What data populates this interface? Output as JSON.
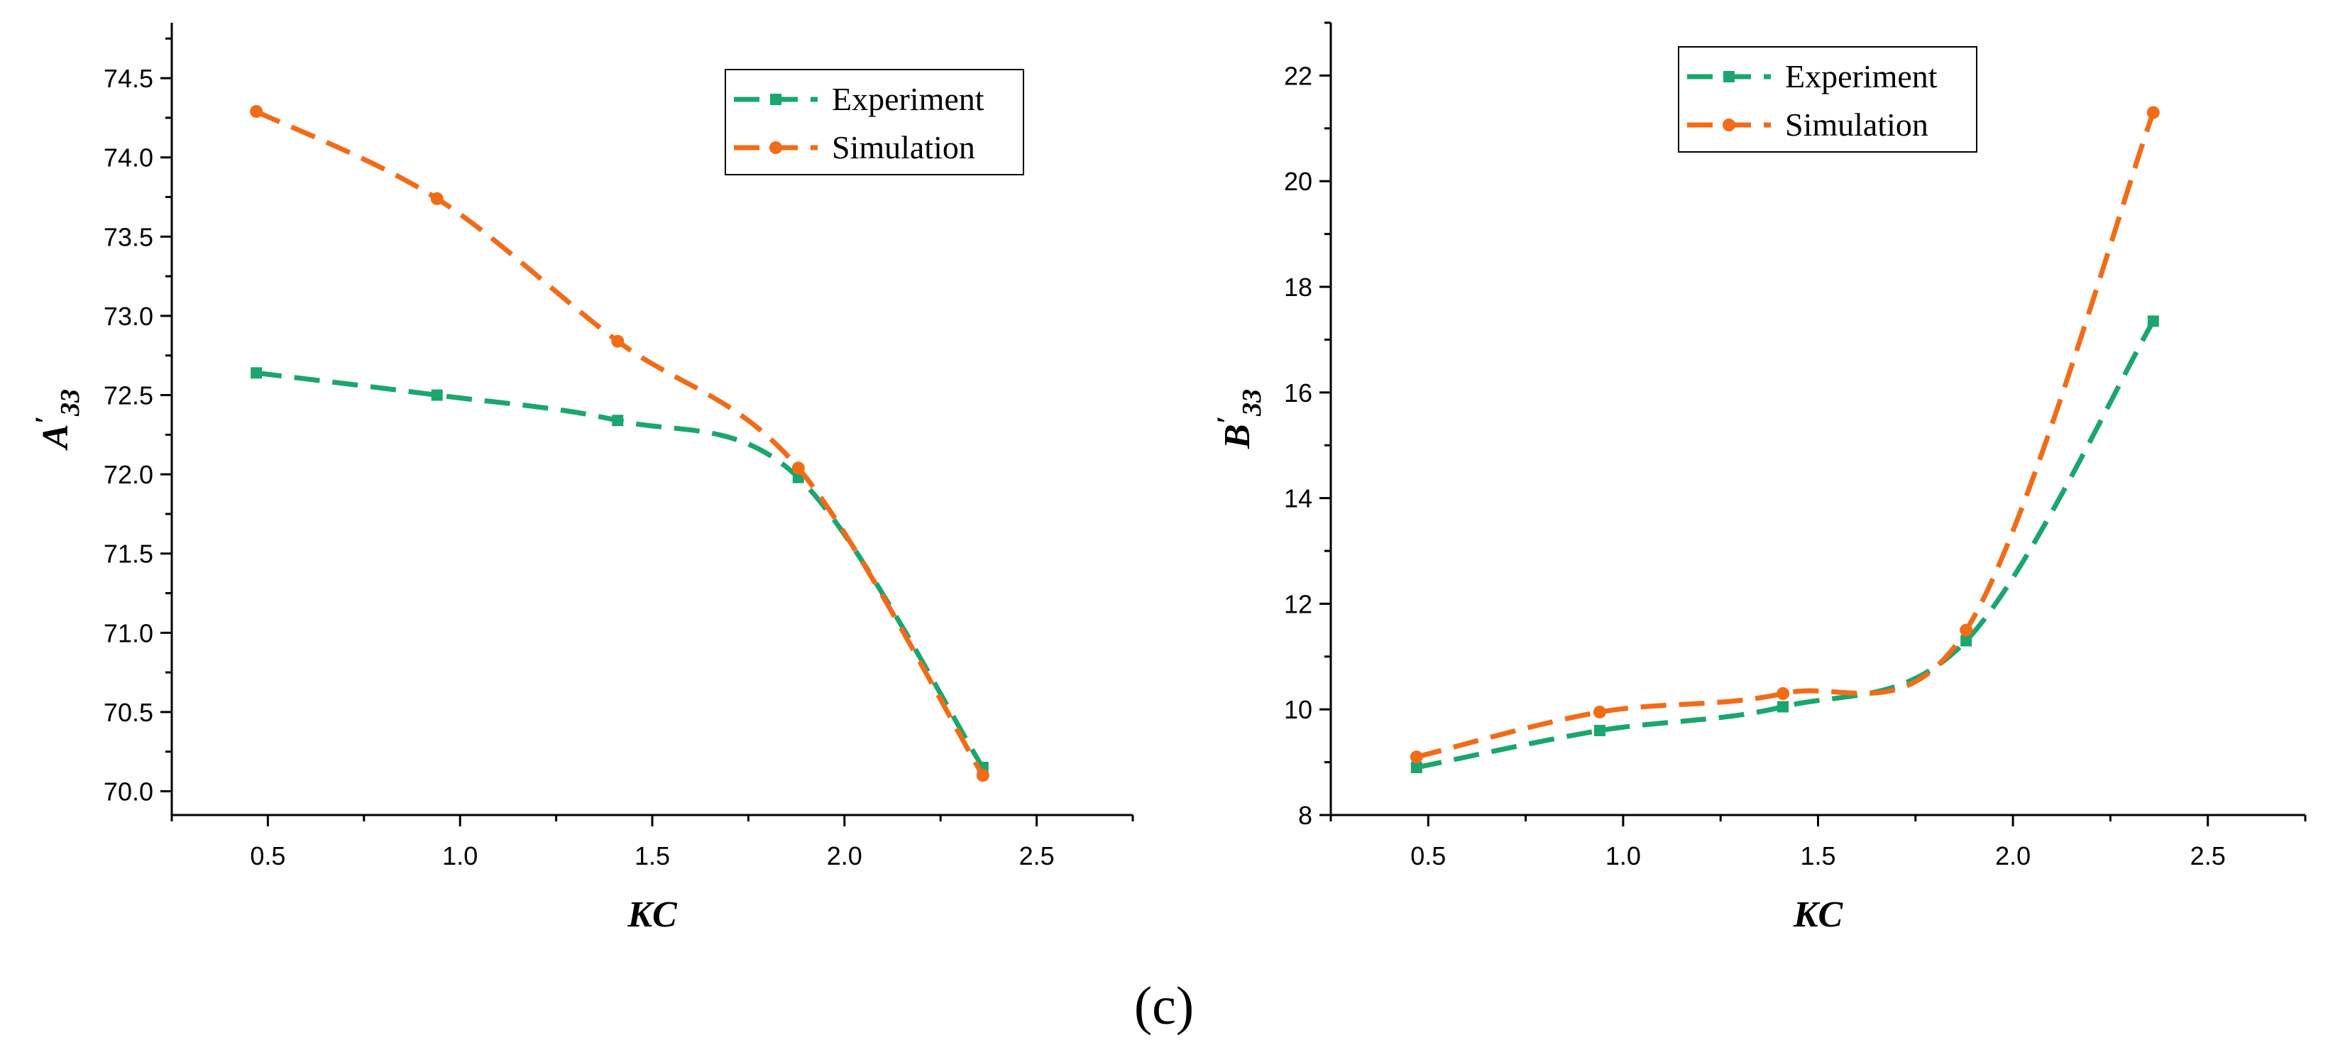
{
  "caption": "(c)",
  "colors": {
    "experiment": "#1aa66e",
    "simulation": "#f26b16"
  },
  "chart_data": [
    {
      "type": "line",
      "title": "",
      "xlabel": "KC",
      "ylabel": {
        "letter": "A",
        "prime": "′",
        "subscript": "33"
      },
      "xlim": [
        0.25,
        2.75
      ],
      "ylim": [
        69.85,
        74.85
      ],
      "xticks": [
        0.5,
        1.0,
        1.5,
        2.0,
        2.5
      ],
      "xtick_labels": [
        "0.5",
        "1.0",
        "1.5",
        "2.0",
        "2.5"
      ],
      "yticks": [
        70.0,
        70.5,
        71.0,
        71.5,
        72.0,
        72.5,
        73.0,
        73.5,
        74.0,
        74.5
      ],
      "ytick_labels": [
        "70.0",
        "70.5",
        "71.0",
        "71.5",
        "72.0",
        "72.5",
        "73.0",
        "73.5",
        "74.0",
        "74.5"
      ],
      "legend": "top-right",
      "x": [
        0.47,
        0.94,
        1.41,
        1.88,
        2.36
      ],
      "series": [
        {
          "name": "Experiment",
          "key": "experiment",
          "marker": "square",
          "values": [
            72.64,
            72.5,
            72.34,
            71.98,
            70.15
          ]
        },
        {
          "name": "Simulation",
          "key": "simulation",
          "marker": "circle",
          "values": [
            74.29,
            73.74,
            72.84,
            72.04,
            70.1
          ]
        }
      ]
    },
    {
      "type": "line",
      "title": "",
      "xlabel": "KC",
      "ylabel": {
        "letter": "B",
        "prime": "′",
        "subscript": "33"
      },
      "xlim": [
        0.25,
        2.75
      ],
      "ylim": [
        8.0,
        23.0
      ],
      "xticks": [
        0.5,
        1.0,
        1.5,
        2.0,
        2.5
      ],
      "xtick_labels": [
        "0.5",
        "1.0",
        "1.5",
        "2.0",
        "2.5"
      ],
      "yticks": [
        8,
        10,
        12,
        14,
        16,
        18,
        20,
        22
      ],
      "ytick_labels": [
        "8",
        "10",
        "12",
        "14",
        "16",
        "18",
        "20",
        "22"
      ],
      "legend": "top-center",
      "x": [
        0.47,
        0.94,
        1.41,
        1.88,
        2.36
      ],
      "series": [
        {
          "name": "Experiment",
          "key": "experiment",
          "marker": "square",
          "values": [
            8.9,
            9.6,
            10.05,
            11.3,
            17.35
          ]
        },
        {
          "name": "Simulation",
          "key": "simulation",
          "marker": "circle",
          "values": [
            9.1,
            9.95,
            10.3,
            11.5,
            21.3
          ]
        }
      ]
    }
  ]
}
